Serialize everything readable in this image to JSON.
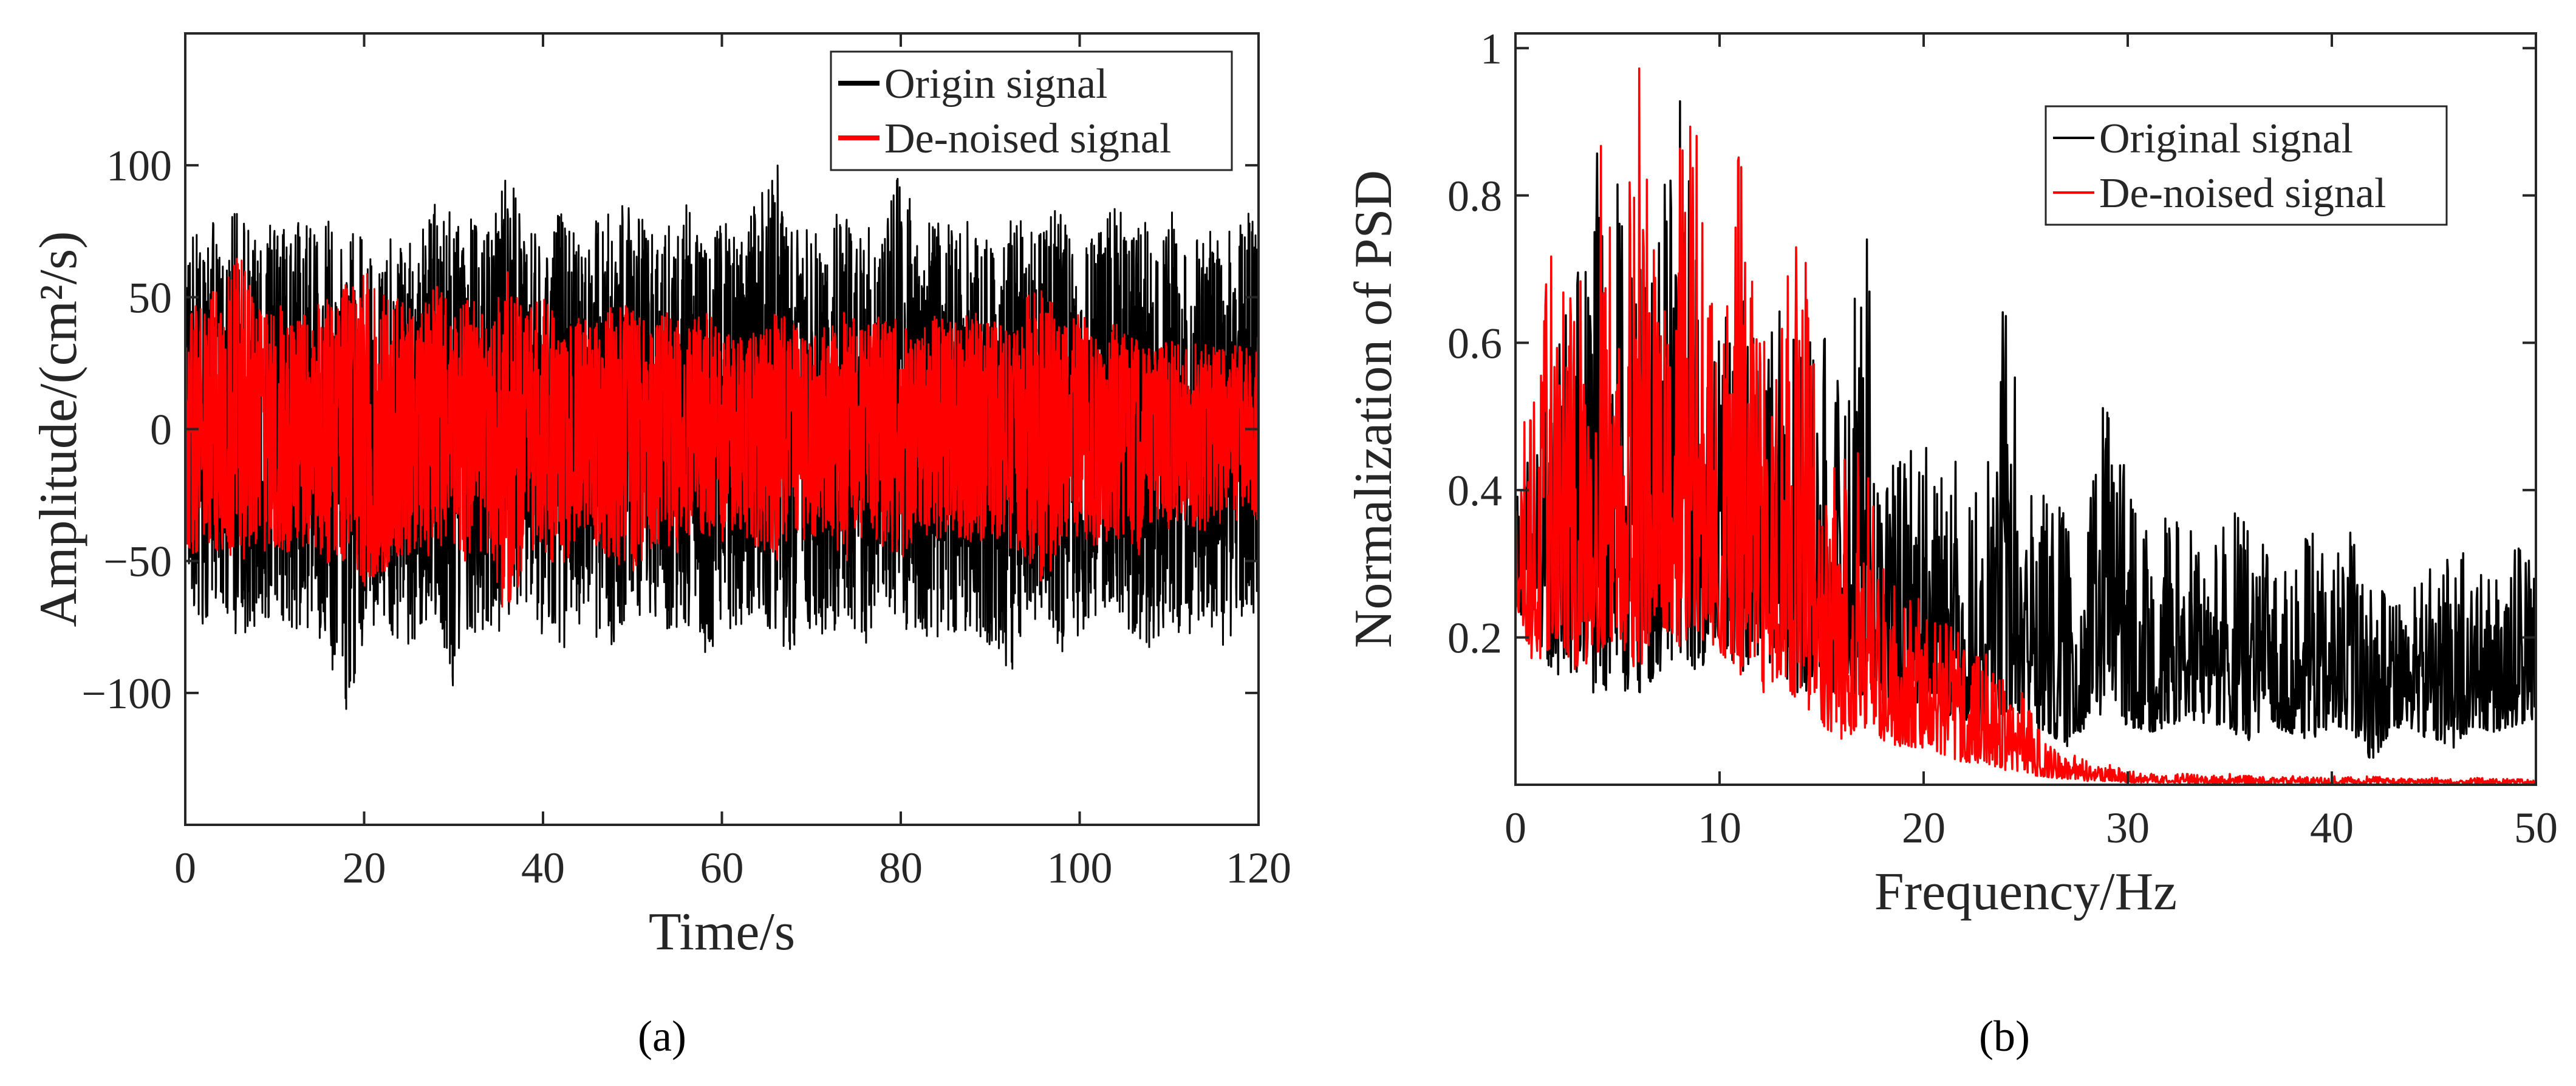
{
  "colors": {
    "original": "#000000",
    "denoised": "#ff0000",
    "axis": "#262626"
  },
  "panel_labels": [
    "(a)",
    "(b)"
  ],
  "chart_data": [
    {
      "type": "line",
      "panel": "(a)",
      "title": "",
      "xlabel": "Time/s",
      "ylabel": "Amplitude/(cm²/s)",
      "xlim": [
        0,
        120
      ],
      "ylim": [
        -150,
        150
      ],
      "xticks": [
        0,
        20,
        40,
        60,
        80,
        100,
        120
      ],
      "yticks": [
        -100,
        -50,
        0,
        50,
        100
      ],
      "ytick_labels": [
        "−100",
        "−50",
        "0",
        "50",
        "100"
      ],
      "grid": false,
      "legend_position": "top-right",
      "series": [
        {
          "name": "Origin signal",
          "color": "#000000",
          "x": [
            0,
            2,
            4,
            6,
            8,
            10,
            12,
            14,
            16,
            18,
            20,
            22,
            24,
            26,
            28,
            30,
            32,
            34,
            36,
            38,
            40,
            42,
            44,
            46,
            48,
            50,
            52,
            54,
            56,
            58,
            60,
            62,
            64,
            66,
            68,
            70,
            72,
            74,
            76,
            78,
            80,
            82,
            84,
            86,
            88,
            90,
            92,
            94,
            96,
            98,
            100,
            102,
            104,
            106,
            108,
            110,
            112,
            114,
            116,
            118,
            120
          ],
          "upper_envelope": [
            60,
            90,
            75,
            85,
            70,
            80,
            75,
            85,
            80,
            65,
            90,
            75,
            80,
            70,
            90,
            80,
            85,
            75,
            105,
            80,
            70,
            85,
            75,
            80,
            90,
            85,
            75,
            80,
            85,
            75,
            80,
            70,
            90,
            105,
            80,
            75,
            85,
            80,
            75,
            85,
            100,
            80,
            85,
            75,
            80,
            75,
            85,
            80,
            75,
            90,
            75,
            80,
            85,
            75,
            80,
            85,
            75,
            80,
            70,
            85,
            80
          ],
          "lower_envelope": [
            -60,
            -75,
            -70,
            -80,
            -75,
            -70,
            -80,
            -75,
            -85,
            -115,
            -80,
            -75,
            -85,
            -80,
            -70,
            -100,
            -85,
            -75,
            -80,
            -70,
            -80,
            -85,
            -75,
            -80,
            -85,
            -75,
            -70,
            -80,
            -75,
            -85,
            -80,
            -75,
            -70,
            -80,
            -85,
            -75,
            -80,
            -70,
            -85,
            -75,
            -80,
            -75,
            -85,
            -80,
            -75,
            -85,
            -95,
            -80,
            -75,
            -85,
            -80,
            -75,
            -70,
            -80,
            -85,
            -75,
            -80,
            -70,
            -85,
            -75,
            -70
          ]
        },
        {
          "name": "De-noised signal",
          "color": "#ff0000",
          "x": [
            0,
            2,
            4,
            6,
            8,
            10,
            12,
            14,
            16,
            18,
            20,
            22,
            24,
            26,
            28,
            30,
            32,
            34,
            36,
            38,
            40,
            42,
            44,
            46,
            48,
            50,
            52,
            54,
            56,
            58,
            60,
            62,
            64,
            66,
            68,
            70,
            72,
            74,
            76,
            78,
            80,
            82,
            84,
            86,
            88,
            90,
            92,
            94,
            96,
            98,
            100,
            102,
            104,
            106,
            108,
            110,
            112,
            114,
            116,
            118,
            120
          ],
          "upper_envelope": [
            45,
            50,
            55,
            70,
            45,
            50,
            40,
            45,
            50,
            55,
            60,
            55,
            50,
            45,
            55,
            45,
            50,
            40,
            60,
            45,
            50,
            40,
            45,
            40,
            50,
            45,
            40,
            45,
            40,
            45,
            40,
            35,
            40,
            45,
            40,
            35,
            40,
            45,
            40,
            45,
            40,
            35,
            45,
            40,
            45,
            40,
            45,
            50,
            55,
            40,
            45,
            35,
            40,
            35,
            30,
            35,
            30,
            35,
            30,
            35,
            35
          ],
          "lower_envelope": [
            -45,
            -50,
            -45,
            -55,
            -50,
            -45,
            -50,
            -45,
            -55,
            -50,
            -60,
            -55,
            -50,
            -45,
            -50,
            -45,
            -55,
            -50,
            -75,
            -50,
            -45,
            -55,
            -40,
            -45,
            -50,
            -55,
            -45,
            -50,
            -45,
            -40,
            -45,
            -40,
            -45,
            -50,
            -45,
            -40,
            -45,
            -50,
            -40,
            -45,
            -50,
            -40,
            -45,
            -40,
            -45,
            -40,
            -45,
            -50,
            -60,
            -45,
            -40,
            -45,
            -40,
            -55,
            -35,
            -40,
            -35,
            -40,
            -35,
            -40,
            -35
          ]
        }
      ]
    },
    {
      "type": "line",
      "panel": "(b)",
      "title": "",
      "xlabel": "Frequency/Hz",
      "ylabel": "Normalization of PSD",
      "xlim": [
        0,
        50
      ],
      "ylim": [
        0,
        1.02
      ],
      "xticks": [
        0,
        10,
        20,
        30,
        40,
        50
      ],
      "yticks": [
        0.2,
        0.4,
        0.6,
        0.8,
        1
      ],
      "ytick_labels": [
        "0.2",
        "0.4",
        "0.6",
        "0.8",
        "1"
      ],
      "grid": false,
      "legend_position": "top-right",
      "series": [
        {
          "name": "Original signal",
          "color": "#000000",
          "x": [
            0,
            1,
            2,
            3,
            4,
            5,
            6,
            7,
            8,
            9,
            10,
            11,
            12,
            13,
            14,
            15,
            16,
            17,
            18,
            19,
            20,
            21,
            22,
            23,
            24,
            25,
            26,
            27,
            28,
            29,
            30,
            31,
            32,
            33,
            34,
            35,
            36,
            37,
            38,
            39,
            40,
            41,
            42,
            43,
            44,
            45,
            46,
            47,
            48,
            49,
            50
          ],
          "upper_envelope": [
            0.4,
            0.5,
            0.6,
            0.75,
            0.86,
            0.82,
            0.7,
            0.75,
            1.0,
            0.7,
            0.65,
            0.68,
            0.6,
            0.65,
            0.6,
            0.63,
            0.55,
            0.82,
            0.5,
            0.45,
            0.48,
            0.5,
            0.42,
            0.4,
            0.69,
            0.45,
            0.4,
            0.38,
            0.35,
            0.62,
            0.4,
            0.35,
            0.37,
            0.35,
            0.33,
            0.38,
            0.35,
            0.32,
            0.3,
            0.35,
            0.3,
            0.35,
            0.28,
            0.3,
            0.28,
            0.32,
            0.35,
            0.3,
            0.28,
            0.33,
            0.3
          ],
          "lower_envelope": [
            0.25,
            0.18,
            0.15,
            0.14,
            0.12,
            0.13,
            0.12,
            0.15,
            0.18,
            0.15,
            0.2,
            0.15,
            0.18,
            0.15,
            0.12,
            0.15,
            0.1,
            0.12,
            0.1,
            0.08,
            0.12,
            0.1,
            0.08,
            0.06,
            0.1,
            0.08,
            0.07,
            0.05,
            0.08,
            0.1,
            0.08,
            0.07,
            0.08,
            0.09,
            0.08,
            0.07,
            0.06,
            0.08,
            0.07,
            0.06,
            0.08,
            0.07,
            0.03,
            0.08,
            0.07,
            0.06,
            0.05,
            0.08,
            0.07,
            0.08,
            0.09
          ]
        },
        {
          "name": "De-noised signal",
          "color": "#ff0000",
          "x": [
            0,
            1,
            2,
            3,
            4,
            5,
            6,
            7,
            8,
            9,
            10,
            11,
            12,
            13,
            14,
            15,
            16,
            17,
            18,
            19,
            20,
            21,
            22,
            23,
            24,
            25,
            26,
            27,
            28,
            29,
            30,
            31,
            32,
            33,
            34,
            35,
            36,
            37,
            38,
            39,
            40,
            41,
            42,
            43,
            44,
            45,
            46,
            47,
            48,
            49,
            50
          ],
          "upper_envelope": [
            0.42,
            0.6,
            0.78,
            0.65,
            0.9,
            0.75,
            1.02,
            0.65,
            0.97,
            0.88,
            0.55,
            0.88,
            0.6,
            0.7,
            0.86,
            0.4,
            0.45,
            0.56,
            0.3,
            0.28,
            0.25,
            0.25,
            0.2,
            0.18,
            0.15,
            0.12,
            0.06,
            0.04,
            0.04,
            0.03,
            0.02,
            0.015,
            0.015,
            0.015,
            0.012,
            0.015,
            0.012,
            0.01,
            0.012,
            0.01,
            0.012,
            0.01,
            0.012,
            0.01,
            0.008,
            0.01,
            0.008,
            0.01,
            0.008,
            0.008,
            0.008
          ],
          "lower_envelope": [
            0.25,
            0.15,
            0.2,
            0.15,
            0.18,
            0.2,
            0.15,
            0.22,
            0.18,
            0.2,
            0.18,
            0.15,
            0.12,
            0.15,
            0.1,
            0.08,
            0.06,
            0.08,
            0.06,
            0.05,
            0.05,
            0.04,
            0.03,
            0.03,
            0.02,
            0.015,
            0.01,
            0.008,
            0.005,
            0.005,
            0.003,
            0.003,
            0.003,
            0.002,
            0.002,
            0.002,
            0.002,
            0.002,
            0.002,
            0.002,
            0.002,
            0.002,
            0.002,
            0.002,
            0.002,
            0.002,
            0.002,
            0.002,
            0.002,
            0.002,
            0.002
          ]
        }
      ]
    }
  ]
}
